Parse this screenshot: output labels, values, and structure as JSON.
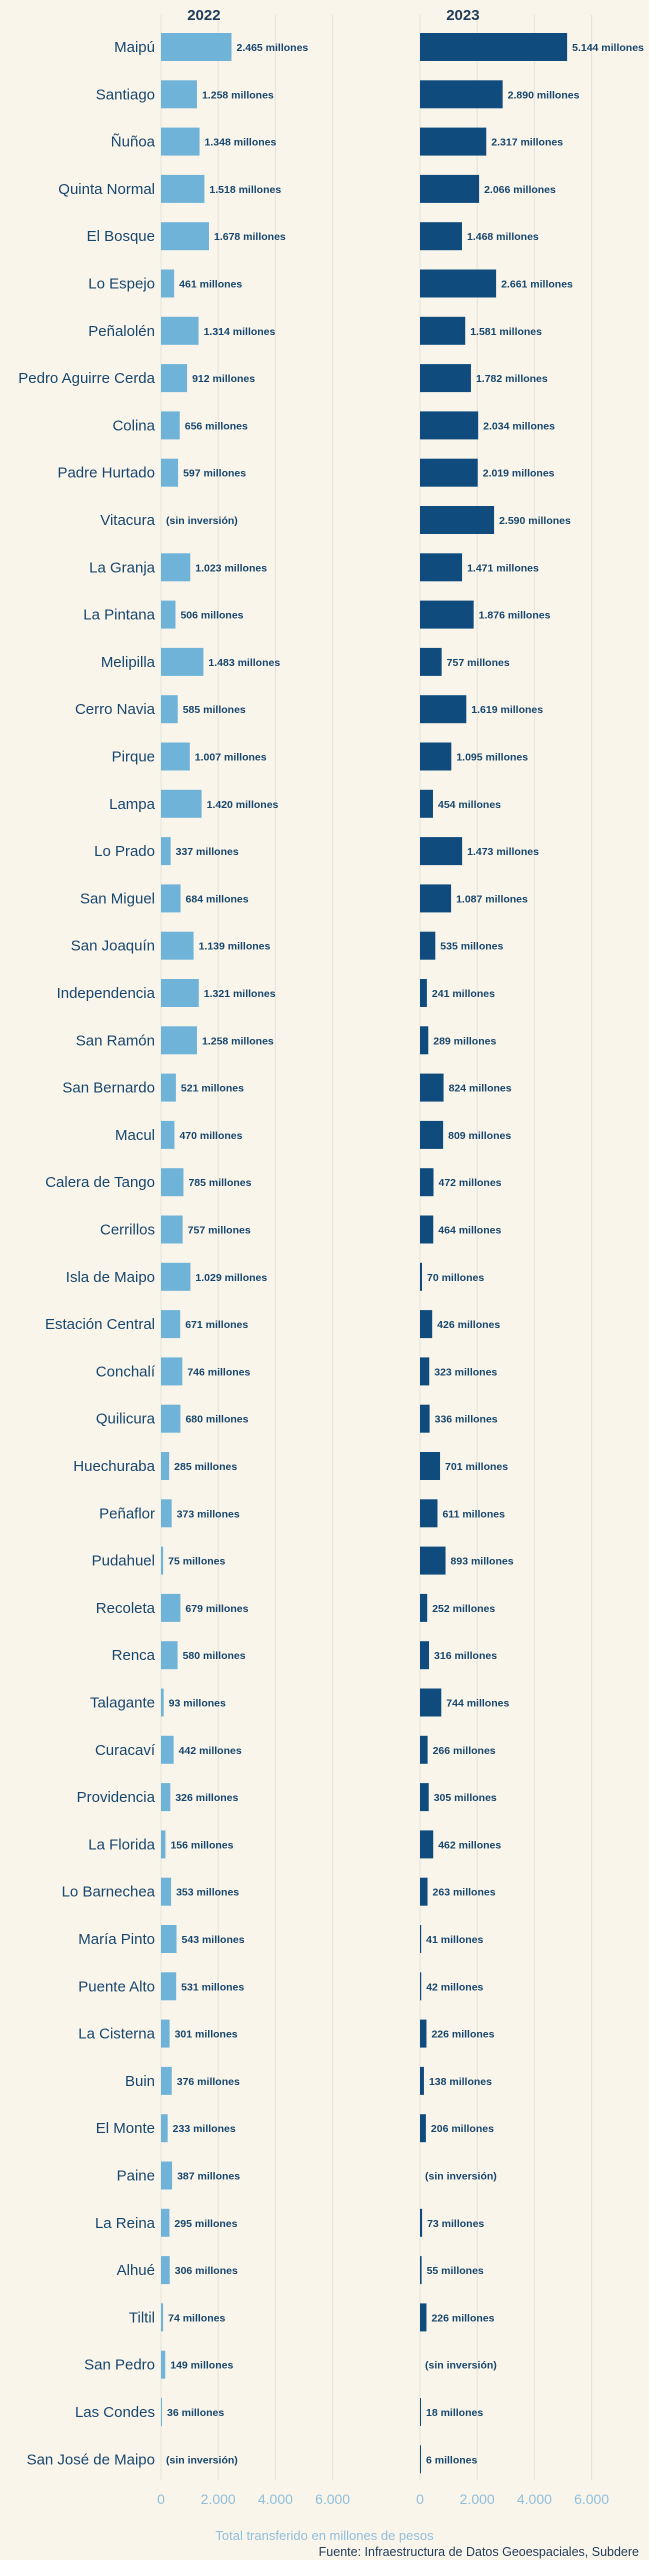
{
  "chart_data": {
    "type": "bar",
    "orientation": "horizontal",
    "panels": [
      {
        "title": "2022",
        "color": "#6fb4d8",
        "xlim": [
          0,
          6000
        ],
        "ticks": [
          "0",
          "2.000",
          "4.000",
          "6.000"
        ],
        "tick_values": [
          0,
          2000,
          4000,
          6000
        ]
      },
      {
        "title": "2023",
        "color": "#0f4c7d",
        "xlim": [
          0,
          6000
        ],
        "ticks": [
          "0",
          "2.000",
          "4.000",
          "6.000"
        ],
        "tick_values": [
          0,
          2000,
          4000,
          6000
        ]
      }
    ],
    "categories": [
      "Maipú",
      "Santiago",
      "Ñuñoa",
      "Quinta Normal",
      "El Bosque",
      "Lo Espejo",
      "Peñalolén",
      "Pedro Aguirre Cerda",
      "Colina",
      "Padre Hurtado",
      "Vitacura",
      "La Granja",
      "La Pintana",
      "Melipilla",
      "Cerro Navia",
      "Pirque",
      "Lampa",
      "Lo Prado",
      "San Miguel",
      "San Joaquín",
      "Independencia",
      "San Ramón",
      "San Bernardo",
      "Macul",
      "Calera de Tango",
      "Cerrillos",
      "Isla de Maipo",
      "Estación Central",
      "Conchalí",
      "Quilicura",
      "Huechuraba",
      "Peñaflor",
      "Pudahuel",
      "Recoleta",
      "Renca",
      "Talagante",
      "Curacaví",
      "Providencia",
      "La Florida",
      "Lo Barnechea",
      "María Pinto",
      "Puente Alto",
      "La Cisterna",
      "Buin",
      "El Monte",
      "Paine",
      "La Reina",
      "Alhué",
      "Tiltil",
      "San Pedro",
      "Las Condes",
      "San José de Maipo"
    ],
    "series": [
      {
        "name": "2022",
        "values": [
          2465,
          1258,
          1348,
          1518,
          1678,
          461,
          1314,
          912,
          656,
          597,
          null,
          1023,
          506,
          1483,
          585,
          1007,
          1420,
          337,
          684,
          1139,
          1321,
          1258,
          521,
          470,
          785,
          757,
          1029,
          671,
          746,
          680,
          285,
          373,
          75,
          679,
          580,
          93,
          442,
          326,
          156,
          353,
          543,
          531,
          301,
          376,
          233,
          387,
          295,
          306,
          74,
          149,
          36,
          null
        ],
        "labels": [
          "2.465 millones",
          "1.258 millones",
          "1.348 millones",
          "1.518 millones",
          "1.678 millones",
          "461 millones",
          "1.314 millones",
          "912 millones",
          "656 millones",
          "597 millones",
          "(sin inversión)",
          "1.023 millones",
          "506 millones",
          "1.483 millones",
          "585 millones",
          "1.007 millones",
          "1.420 millones",
          "337 millones",
          "684 millones",
          "1.139 millones",
          "1.321 millones",
          "1.258 millones",
          "521 millones",
          "470 millones",
          "785 millones",
          "757 millones",
          "1.029 millones",
          "671 millones",
          "746 millones",
          "680 millones",
          "285 millones",
          "373 millones",
          "75 millones",
          "679 millones",
          "580 millones",
          "93 millones",
          "442 millones",
          "326 millones",
          "156 millones",
          "353 millones",
          "543 millones",
          "531 millones",
          "301 millones",
          "376 millones",
          "233 millones",
          "387 millones",
          "295 millones",
          "306 millones",
          "74 millones",
          "149 millones",
          "36 millones",
          "(sin inversión)"
        ]
      },
      {
        "name": "2023",
        "values": [
          5144,
          2890,
          2317,
          2066,
          1468,
          2661,
          1581,
          1782,
          2034,
          2019,
          2590,
          1471,
          1876,
          757,
          1619,
          1095,
          454,
          1473,
          1087,
          535,
          241,
          289,
          824,
          809,
          472,
          464,
          70,
          426,
          323,
          336,
          701,
          611,
          893,
          252,
          316,
          744,
          266,
          305,
          462,
          263,
          41,
          42,
          226,
          138,
          206,
          null,
          73,
          55,
          226,
          null,
          18,
          6
        ],
        "labels": [
          "5.144 millones",
          "2.890 millones",
          "2.317 millones",
          "2.066 millones",
          "1.468 millones",
          "2.661 millones",
          "1.581 millones",
          "1.782 millones",
          "2.034 millones",
          "2.019 millones",
          "2.590 millones",
          "1.471 millones",
          "1.876 millones",
          "757 millones",
          "1.619 millones",
          "1.095 millones",
          "454 millones",
          "1.473 millones",
          "1.087 millones",
          "535 millones",
          "241 millones",
          "289 millones",
          "824 millones",
          "809 millones",
          "472 millones",
          "464 millones",
          "70 millones",
          "426 millones",
          "323 millones",
          "336 millones",
          "701 millones",
          "611 millones",
          "893 millones",
          "252 millones",
          "316 millones",
          "744 millones",
          "266 millones",
          "305 millones",
          "462 millones",
          "263 millones",
          "41 millones",
          "42 millones",
          "226 millones",
          "138 millones",
          "206 millones",
          "(sin inversión)",
          "73 millones",
          "55 millones",
          "226 millones",
          "(sin inversión)",
          "18 millones",
          "6 millones"
        ]
      }
    ],
    "xlabel": "Total transferido en millones de pesos",
    "source": "Fuente: Infraestructura de Datos Geoespaciales, Subdere",
    "grid": true
  }
}
